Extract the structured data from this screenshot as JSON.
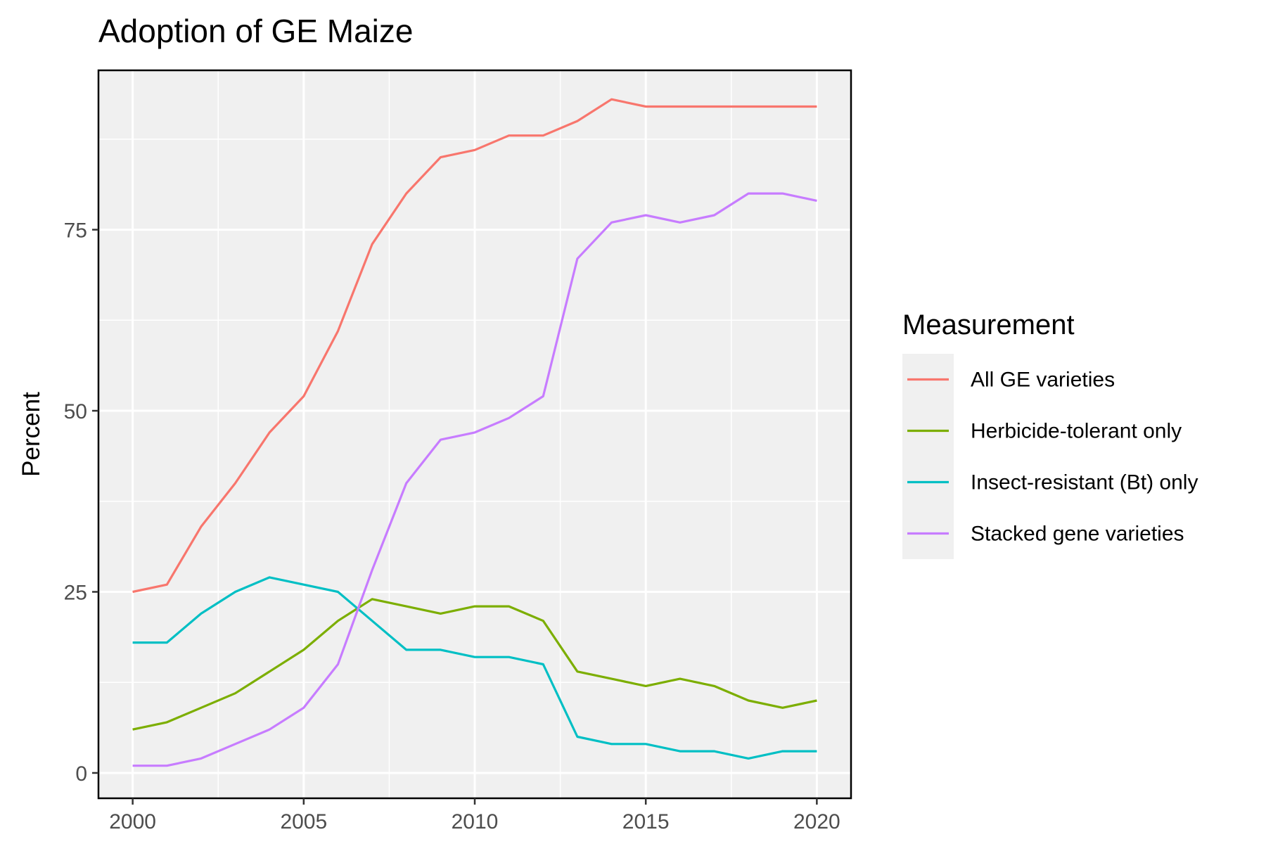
{
  "chart_data": {
    "type": "line",
    "title": "Adoption of GE Maize",
    "xlabel": "",
    "ylabel": "Percent",
    "xlim": [
      1999,
      2021
    ],
    "ylim": [
      -3.5,
      97
    ],
    "x_ticks": [
      2000,
      2005,
      2010,
      2015,
      2020
    ],
    "x_tick_labels": [
      "2000",
      "2005",
      "2010",
      "2015",
      "2020"
    ],
    "y_ticks": [
      0,
      25,
      50,
      75
    ],
    "y_tick_labels": [
      "0",
      "25",
      "50",
      "75"
    ],
    "grid": true,
    "legend_title": "Measurement",
    "legend_position": "right",
    "x": [
      2000,
      2001,
      2002,
      2003,
      2004,
      2005,
      2006,
      2007,
      2008,
      2009,
      2010,
      2011,
      2012,
      2013,
      2014,
      2015,
      2016,
      2017,
      2018,
      2019,
      2020
    ],
    "series": [
      {
        "name": "All GE varieties",
        "color": "#F8766D",
        "values": [
          25,
          26,
          34,
          40,
          47,
          52,
          61,
          73,
          80,
          85,
          86,
          88,
          88,
          90,
          93,
          92,
          92,
          92,
          92,
          92,
          92
        ]
      },
      {
        "name": "Herbicide-tolerant only",
        "color": "#7CAE00",
        "values": [
          6,
          7,
          9,
          11,
          14,
          17,
          21,
          24,
          23,
          22,
          23,
          23,
          21,
          14,
          13,
          12,
          13,
          12,
          10,
          9,
          10
        ]
      },
      {
        "name": "Insect-resistant (Bt) only",
        "color": "#00BFC4",
        "values": [
          18,
          18,
          22,
          25,
          27,
          26,
          25,
          21,
          17,
          17,
          16,
          16,
          15,
          5,
          4,
          4,
          3,
          3,
          2,
          3,
          3
        ]
      },
      {
        "name": "Stacked gene varieties",
        "color": "#C77CFF",
        "values": [
          1,
          1,
          2,
          4,
          6,
          9,
          15,
          28,
          40,
          46,
          47,
          49,
          52,
          71,
          76,
          77,
          76,
          77,
          80,
          80,
          79
        ]
      }
    ]
  }
}
